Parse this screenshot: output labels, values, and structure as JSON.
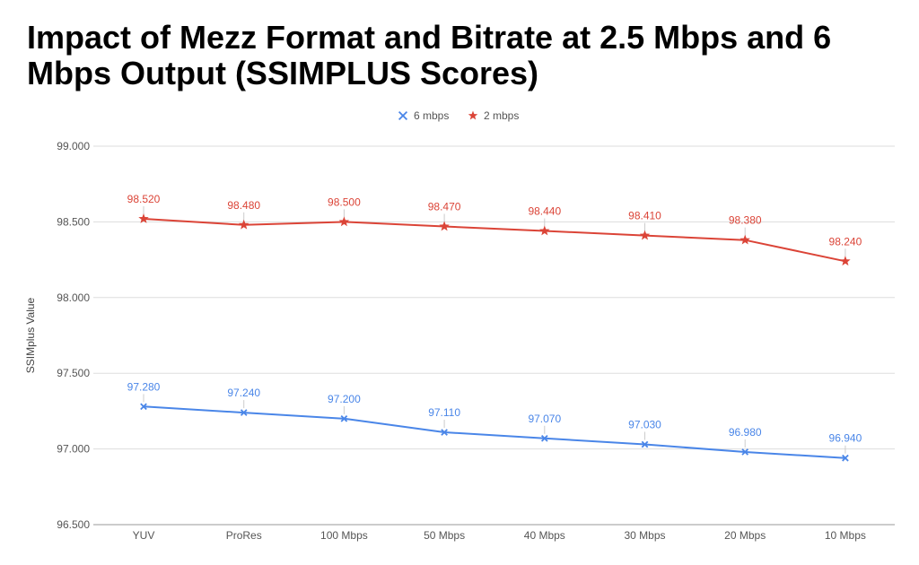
{
  "chart_data": {
    "type": "line",
    "title": "Impact of Mezz Format and Bitrate at 2.5 Mbps and 6 Mbps Output (SSIMPLUS Scores)",
    "xlabel": "",
    "ylabel": "SSIMplus Value",
    "categories": [
      "YUV",
      "ProRes",
      "100 Mbps",
      "50 Mbps",
      "40 Mbps",
      "30 Mbps",
      "20 Mbps",
      "10 Mbps"
    ],
    "ylim": [
      96.5,
      99.0
    ],
    "yticks": [
      "96.500",
      "97.000",
      "97.500",
      "98.000",
      "98.500",
      "99.000"
    ],
    "grid": true,
    "legend_position": "top-center",
    "series": [
      {
        "name": "6 mbps",
        "color": "#4a86e8",
        "marker": "x",
        "values": [
          97.28,
          97.24,
          97.2,
          97.11,
          97.07,
          97.03,
          96.98,
          96.94
        ],
        "labels": [
          "97.280",
          "97.240",
          "97.200",
          "97.110",
          "97.070",
          "97.030",
          "96.980",
          "96.940"
        ]
      },
      {
        "name": "2 mbps",
        "color": "#db4437",
        "marker": "star",
        "values": [
          98.52,
          98.48,
          98.5,
          98.47,
          98.44,
          98.41,
          98.38,
          98.24
        ],
        "labels": [
          "98.520",
          "98.480",
          "98.500",
          "98.470",
          "98.440",
          "98.410",
          "98.380",
          "98.240"
        ]
      }
    ]
  }
}
